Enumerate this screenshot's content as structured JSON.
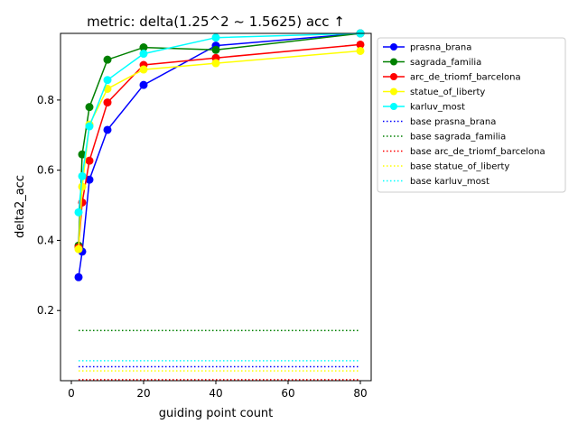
{
  "chart_data": {
    "type": "line",
    "title": "metric: delta(1.25^2 ~ 1.5625) acc ↑",
    "xlabel": "guiding point count",
    "ylabel": "delta2_acc",
    "xlim": [
      -3,
      83
    ],
    "ylim": [
      0.0,
      0.99
    ],
    "xticks": [
      0,
      20,
      40,
      60,
      80
    ],
    "yticks": [
      0.2,
      0.4,
      0.6,
      0.8
    ],
    "xtick_labels": [
      "0",
      "20",
      "40",
      "60",
      "80"
    ],
    "ytick_labels": [
      "0.2",
      "0.4",
      "0.6",
      "0.8"
    ],
    "grid": false,
    "legend_position": "outside-top-right",
    "x": [
      2,
      3,
      5,
      10,
      20,
      40,
      80
    ],
    "series": [
      {
        "name": "prasna_brana",
        "color": "#0000ff",
        "values": [
          0.295,
          0.368,
          0.573,
          0.715,
          0.843,
          0.955,
          0.99
        ]
      },
      {
        "name": "sagrada_familia",
        "color": "#008000",
        "values": [
          0.385,
          0.645,
          0.78,
          0.915,
          0.95,
          0.943,
          0.99
        ]
      },
      {
        "name": "arc_de_triomf_barcelona",
        "color": "#ff0000",
        "values": [
          0.38,
          0.508,
          0.627,
          0.793,
          0.9,
          0.92,
          0.958
        ]
      },
      {
        "name": "statue_of_liberty",
        "color": "#ffff00",
        "values": [
          0.375,
          0.553,
          0.73,
          0.832,
          0.887,
          0.905,
          0.94
        ]
      },
      {
        "name": "karluv_most",
        "color": "#00ffff",
        "values": [
          0.48,
          0.583,
          0.725,
          0.857,
          0.932,
          0.978,
          0.99
        ]
      }
    ],
    "baselines": [
      {
        "name": "base prasna_brana",
        "color": "#0000ff",
        "value": 0.04
      },
      {
        "name": "base sagrada_familia",
        "color": "#008000",
        "value": 0.143
      },
      {
        "name": "base arc_de_triomf_barcelona",
        "color": "#ff0000",
        "value": 0.003
      },
      {
        "name": "base statue_of_liberty",
        "color": "#ffff00",
        "value": 0.028
      },
      {
        "name": "base karluv_most",
        "color": "#00ffff",
        "value": 0.057
      }
    ]
  }
}
